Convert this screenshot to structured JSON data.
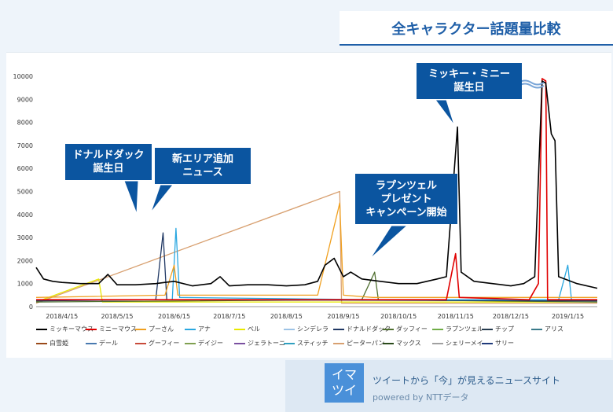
{
  "title": "全キャラクター話題量比較",
  "chart_data": {
    "type": "line",
    "x_ticks": [
      "2018/4/15",
      "2018/5/15",
      "2018/6/15",
      "2018/7/15",
      "2018/8/15",
      "2018/9/15",
      "2018/10/15",
      "2018/11/15",
      "2018/12/15",
      "2019/1/15"
    ],
    "ylim": [
      0,
      10000
    ],
    "y_ticks": [
      "0",
      "1000",
      "2000",
      "3000",
      "4000",
      "5000",
      "6000",
      "7000",
      "8000",
      "9000",
      "10000"
    ],
    "x_range": [
      "2018/4/1",
      "2019/1/31"
    ],
    "series": [
      {
        "name": "ミッキーマウス",
        "color": "#000000",
        "points": [
          [
            "2018/4/1",
            1700
          ],
          [
            "2018/4/5",
            1200
          ],
          [
            "2018/4/10",
            1100
          ],
          [
            "2018/4/15",
            1050
          ],
          [
            "2018/4/25",
            1000
          ],
          [
            "2018/5/5",
            1000
          ],
          [
            "2018/5/10",
            1400
          ],
          [
            "2018/5/15",
            950
          ],
          [
            "2018/5/25",
            950
          ],
          [
            "2018/6/5",
            1000
          ],
          [
            "2018/6/10",
            1050
          ],
          [
            "2018/6/15",
            1100
          ],
          [
            "2018/6/25",
            900
          ],
          [
            "2018/7/5",
            1000
          ],
          [
            "2018/7/10",
            1300
          ],
          [
            "2018/7/15",
            900
          ],
          [
            "2018/7/25",
            950
          ],
          [
            "2018/8/5",
            950
          ],
          [
            "2018/8/15",
            900
          ],
          [
            "2018/8/25",
            950
          ],
          [
            "2018/9/1",
            1100
          ],
          [
            "2018/9/5",
            1800
          ],
          [
            "2018/9/10",
            2100
          ],
          [
            "2018/9/15",
            1300
          ],
          [
            "2018/9/19",
            1500
          ],
          [
            "2018/9/25",
            1200
          ],
          [
            "2018/10/5",
            1100
          ],
          [
            "2018/10/15",
            1000
          ],
          [
            "2018/10/25",
            1000
          ],
          [
            "2018/11/5",
            1200
          ],
          [
            "2018/11/10",
            1300
          ],
          [
            "2018/11/16",
            7800
          ],
          [
            "2018/11/18",
            1500
          ],
          [
            "2018/11/25",
            1100
          ],
          [
            "2018/12/5",
            1000
          ],
          [
            "2018/12/15",
            900
          ],
          [
            "2018/12/22",
            1000
          ],
          [
            "2018/12/28",
            1300
          ],
          [
            "2019/1/1",
            9800
          ],
          [
            "2019/1/3",
            9700
          ],
          [
            "2019/1/6",
            7500
          ],
          [
            "2019/1/8",
            7200
          ],
          [
            "2019/1/10",
            1300
          ],
          [
            "2019/1/20",
            1000
          ],
          [
            "2019/1/31",
            800
          ]
        ]
      },
      {
        "name": "ミニーマウス",
        "color": "#e00000",
        "points": [
          [
            "2018/4/1",
            300
          ],
          [
            "2018/9/15",
            300
          ],
          [
            "2018/11/10",
            300
          ],
          [
            "2018/11/15",
            2300
          ],
          [
            "2018/11/17",
            400
          ],
          [
            "2018/12/25",
            300
          ],
          [
            "2018/12/30",
            1000
          ],
          [
            "2019/1/1",
            9900
          ],
          [
            "2019/1/3",
            9800
          ],
          [
            "2019/1/4",
            300
          ],
          [
            "2019/1/31",
            300
          ]
        ]
      },
      {
        "name": "プーさん",
        "color": "#f0a020",
        "points": [
          [
            "2018/4/1",
            400
          ],
          [
            "2018/6/10",
            500
          ],
          [
            "2018/6/15",
            1800
          ],
          [
            "2018/6/17",
            500
          ],
          [
            "2018/9/1",
            500
          ],
          [
            "2018/9/13",
            4500
          ],
          [
            "2018/9/15",
            500
          ],
          [
            "2018/10/1",
            400
          ],
          [
            "2019/1/31",
            400
          ]
        ]
      },
      {
        "name": "アナ",
        "color": "#2aa7e0",
        "points": [
          [
            "2018/4/1",
            300
          ],
          [
            "2018/6/14",
            300
          ],
          [
            "2018/6/16",
            3400
          ],
          [
            "2018/6/18",
            400
          ],
          [
            "2018/10/1",
            300
          ],
          [
            "2019/1/10",
            300
          ],
          [
            "2019/1/15",
            1800
          ],
          [
            "2019/1/17",
            300
          ],
          [
            "2019/1/31",
            300
          ]
        ]
      },
      {
        "name": "ドナルドダック",
        "color": "#203864",
        "points": [
          [
            "2018/4/1",
            250
          ],
          [
            "2018/6/5",
            300
          ],
          [
            "2018/6/9",
            3200
          ],
          [
            "2018/6/11",
            300
          ],
          [
            "2019/1/31",
            250
          ]
        ]
      },
      {
        "name": "ダッフィー",
        "color": "#507030",
        "points": [
          [
            "2018/4/1",
            200
          ],
          [
            "2018/9/25",
            300
          ],
          [
            "2018/10/2",
            1500
          ],
          [
            "2018/10/4",
            300
          ],
          [
            "2019/1/31",
            200
          ]
        ]
      },
      {
        "name": "ベル",
        "color": "#e8e800",
        "points": [
          [
            "2018/4/1",
            200
          ],
          [
            "2018/5/5",
            1200
          ],
          [
            "2018/5/7",
            200
          ],
          [
            "2019/1/31",
            200
          ]
        ]
      },
      {
        "name": "ピーターパン",
        "color": "#d8a070",
        "points": [
          [
            "2018/4/1",
            150
          ],
          [
            "2018/9/13",
            5000
          ],
          [
            "2018/9/14",
            150
          ],
          [
            "2019/1/31",
            150
          ]
        ]
      }
    ]
  },
  "callouts": [
    {
      "text": "ドナルドダック\n誕生日"
    },
    {
      "text": "新エリア追加\nニュース"
    },
    {
      "text": "ラプンツェル\nプレゼント\nキャンペーン開始"
    },
    {
      "text": "ミッキー・ミニー\n誕生日"
    }
  ],
  "legend": [
    {
      "name": "ミッキーマウス",
      "color": "#000000"
    },
    {
      "name": "ミニーマウス",
      "color": "#e00000"
    },
    {
      "name": "プーさん",
      "color": "#f0a020"
    },
    {
      "name": "アナ",
      "color": "#2aa7e0"
    },
    {
      "name": "ベル",
      "color": "#e8e800"
    },
    {
      "name": "シンデレラ",
      "color": "#9dc3e6"
    },
    {
      "name": "ドナルドダック",
      "color": "#203864"
    },
    {
      "name": "ダッフィー",
      "color": "#507030"
    },
    {
      "name": "ラプンツェル",
      "color": "#70ad47"
    },
    {
      "name": "チップ",
      "color": "#263b4f"
    },
    {
      "name": "アリス",
      "color": "#3a7a8a"
    },
    {
      "name": "白雪姫",
      "color": "#9a4a1a"
    },
    {
      "name": "デール",
      "color": "#4a7ab0"
    },
    {
      "name": "グーフィー",
      "color": "#c84b3a"
    },
    {
      "name": "デイジー",
      "color": "#80a050"
    },
    {
      "name": "ジェラトーニ",
      "color": "#7a50a0"
    },
    {
      "name": "スティッチ",
      "color": "#30a0c0"
    },
    {
      "name": "ピーターパン",
      "color": "#d8a070"
    },
    {
      "name": "マックス",
      "color": "#2a4a1a"
    },
    {
      "name": "シェリーメイ",
      "color": "#a0a0a0"
    },
    {
      "name": "サリー",
      "color": "#1f3a7a"
    }
  ],
  "footer": {
    "logo": "イマ\nツイ",
    "tagline": "ツイートから「今」が見えるニュースサイト",
    "powered": "powered by  NTTデータ"
  }
}
